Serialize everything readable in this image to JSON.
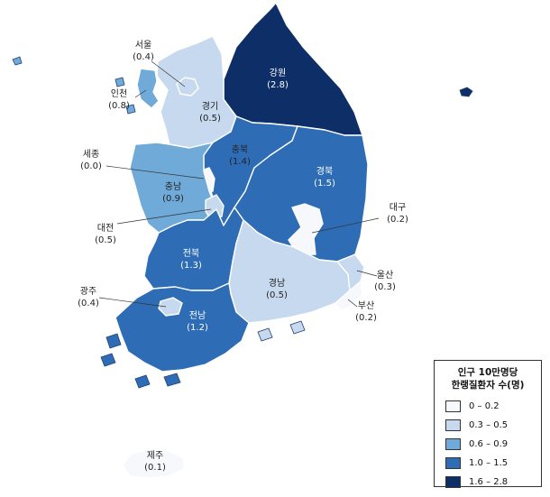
{
  "colors": {
    "c0": "#f6f8fc",
    "c1": "#c6d9ef",
    "c2": "#6faad8",
    "c3": "#2e6db5",
    "c4": "#0d2e66",
    "sea": "#ffffff"
  },
  "regions": [
    {
      "id": "gangwon",
      "name": "강원",
      "value": "(2.8)",
      "cls": "c4"
    },
    {
      "id": "seoul",
      "name": "서울",
      "value": "(0.4)",
      "cls": "c1"
    },
    {
      "id": "incheon",
      "name": "인천",
      "value": "(0.8)",
      "cls": "c2"
    },
    {
      "id": "gyeonggi",
      "name": "경기",
      "value": "(0.5)",
      "cls": "c1"
    },
    {
      "id": "sejong",
      "name": "세종",
      "value": "(0.0)",
      "cls": "c0"
    },
    {
      "id": "chungbuk",
      "name": "충북",
      "value": "(1.4)",
      "cls": "c3"
    },
    {
      "id": "chungnam",
      "name": "충남",
      "value": "(0.9)",
      "cls": "c2"
    },
    {
      "id": "daejeon",
      "name": "대전",
      "value": "(0.5)",
      "cls": "c1"
    },
    {
      "id": "gyeongbuk",
      "name": "경북",
      "value": "(1.5)",
      "cls": "c3"
    },
    {
      "id": "daegu",
      "name": "대구",
      "value": "(0.2)",
      "cls": "c0"
    },
    {
      "id": "jeonbuk",
      "name": "전북",
      "value": "(1.3)",
      "cls": "c3"
    },
    {
      "id": "gwangju",
      "name": "광주",
      "value": "(0.4)",
      "cls": "c1"
    },
    {
      "id": "jeonnam",
      "name": "전남",
      "value": "(1.2)",
      "cls": "c3"
    },
    {
      "id": "gyeongnam",
      "name": "경남",
      "value": "(0.5)",
      "cls": "c1"
    },
    {
      "id": "ulsan",
      "name": "울산",
      "value": "(0.3)",
      "cls": "c1"
    },
    {
      "id": "busan",
      "name": "부산",
      "value": "(0.2)",
      "cls": "c0"
    },
    {
      "id": "jeju",
      "name": "제주",
      "value": "(0.1)",
      "cls": "c0"
    }
  ],
  "legend": {
    "title_line1": "인구 10만명당",
    "title_line2": "한랭질환자 수(명)",
    "items": [
      {
        "label": "0 – 0.2",
        "color": "#f6f8fc"
      },
      {
        "label": "0.3 – 0.5",
        "color": "#c6d9ef"
      },
      {
        "label": "0.6 – 0.9",
        "color": "#6faad8"
      },
      {
        "label": "1.0 – 1.5",
        "color": "#2e6db5"
      },
      {
        "label": "1.6 – 2.8",
        "color": "#0d2e66"
      }
    ]
  }
}
